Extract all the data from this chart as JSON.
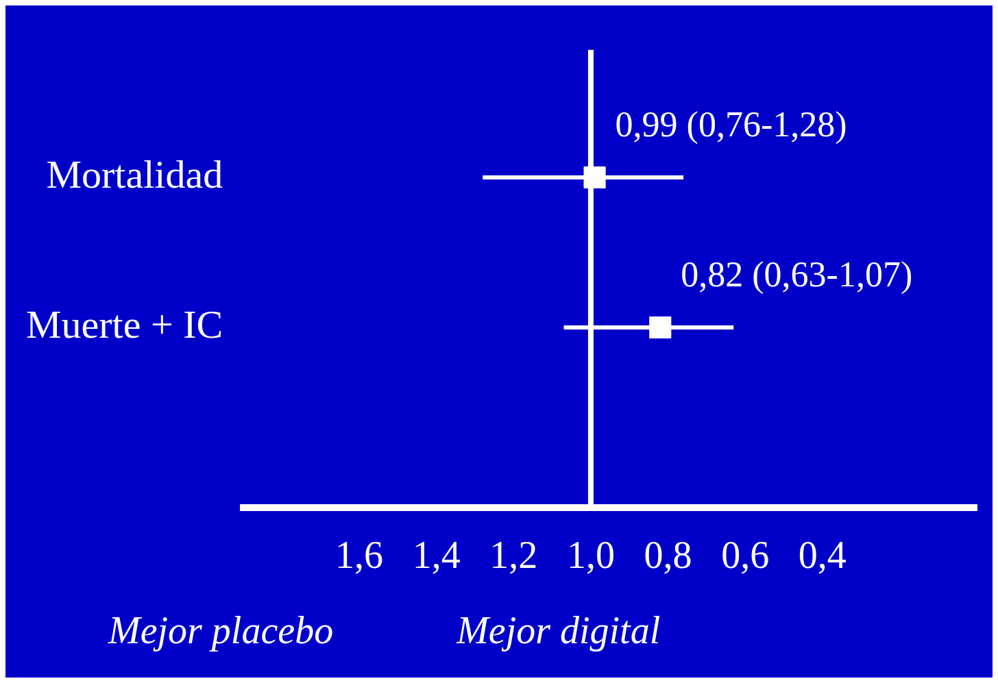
{
  "chart_data": {
    "type": "scatter",
    "orientation": "horizontal",
    "categories": [
      "Mortalidad",
      "Muerte + IC"
    ],
    "series": [
      {
        "color": "#ffffff",
        "values": [
          0.99,
          0.82
        ],
        "errors": [
          [
            0.76,
            1.28
          ],
          [
            0.63,
            1.07
          ]
        ],
        "value_labels": [
          "0,99 (0,76-1,28)",
          "0,82 (0,63-1,07)"
        ]
      }
    ],
    "marker": "square",
    "xlim": [
      1.9,
      0
    ],
    "xticks": [
      {
        "value": 1.6,
        "label": "1,6"
      },
      {
        "value": 1.4,
        "label": "1,4"
      },
      {
        "value": 1.2,
        "label": "1,2"
      },
      {
        "value": 1.0,
        "label": "1,0"
      },
      {
        "value": 0.8,
        "label": "0,8"
      },
      {
        "value": 0.6,
        "label": "0,6"
      },
      {
        "value": 0.4,
        "label": "0,4"
      }
    ],
    "ref_lines": [
      {
        "axis": "x",
        "value": 1.0,
        "color": "#ffffff"
      }
    ],
    "grid": false,
    "legend": false,
    "annotations": [
      "Mejor placebo",
      "Mejor digital"
    ]
  }
}
